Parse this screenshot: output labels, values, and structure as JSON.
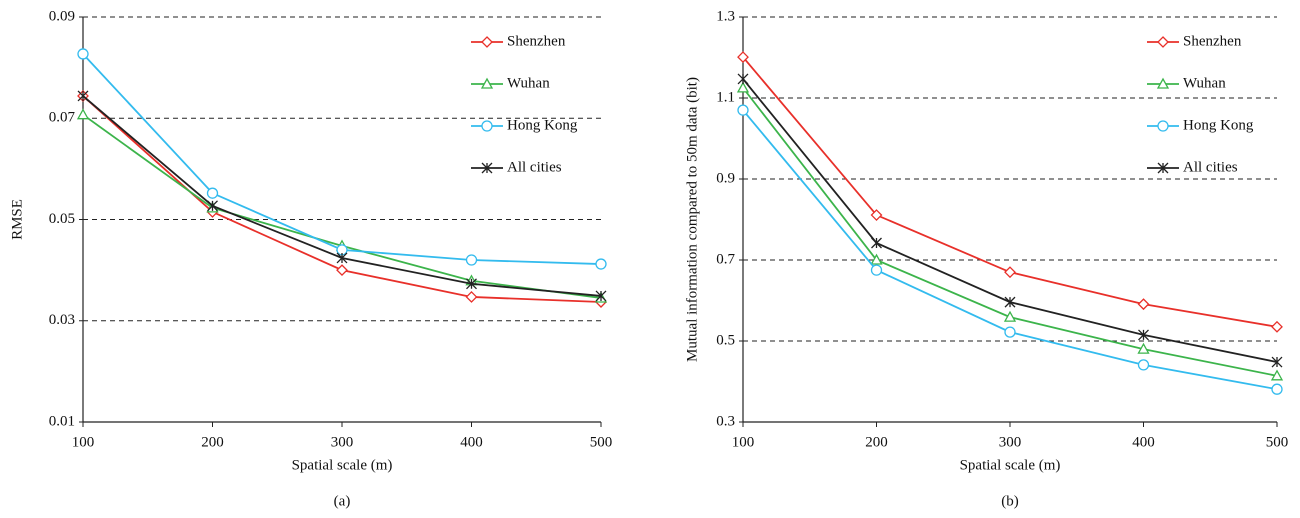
{
  "chart_data": [
    {
      "type": "line",
      "caption": "(a)",
      "x_label": "Spatial scale (m)",
      "y_label": "RMSE",
      "x": [
        100,
        200,
        300,
        400,
        500
      ],
      "xlim": [
        100,
        500
      ],
      "xticks": [
        100,
        200,
        300,
        400,
        500
      ],
      "ylim": [
        0.01,
        0.09
      ],
      "yticks": [
        0.01,
        0.03,
        0.05,
        0.07,
        0.09
      ],
      "grid": true,
      "legend": "upper right",
      "series": [
        {
          "name": "Shenzhen",
          "color": "#e8302a",
          "marker": "diamond",
          "values": [
            0.0744,
            0.0515,
            0.04,
            0.0347,
            0.0337
          ]
        },
        {
          "name": "Wuhan",
          "color": "#3cb44b",
          "marker": "triangle",
          "values": [
            0.0707,
            0.0523,
            0.0448,
            0.0379,
            0.0345
          ]
        },
        {
          "name": "Hong Kong",
          "color": "#33bbee",
          "marker": "circle",
          "values": [
            0.0827,
            0.0552,
            0.044,
            0.042,
            0.0412
          ]
        },
        {
          "name": "All cities",
          "color": "#222222",
          "marker": "asterisk",
          "values": [
            0.0744,
            0.0527,
            0.0424,
            0.0373,
            0.0349
          ]
        }
      ]
    },
    {
      "type": "line",
      "caption": "(b)",
      "x_label": "Spatial scale (m)",
      "y_label": "Mutual information compared to 50m data (bit)",
      "x": [
        100,
        200,
        300,
        400,
        500
      ],
      "xlim": [
        100,
        500
      ],
      "xticks": [
        100,
        200,
        300,
        400,
        500
      ],
      "ylim": [
        0.3,
        1.3
      ],
      "yticks": [
        0.3,
        0.5,
        0.7,
        0.9,
        1.1,
        1.3
      ],
      "grid": true,
      "legend": "upper right",
      "series": [
        {
          "name": "Shenzhen",
          "color": "#e8302a",
          "marker": "diamond",
          "values": [
            1.201,
            0.811,
            0.67,
            0.591,
            0.535
          ]
        },
        {
          "name": "Wuhan",
          "color": "#3cb44b",
          "marker": "triangle",
          "values": [
            1.125,
            0.7,
            0.559,
            0.48,
            0.414
          ]
        },
        {
          "name": "Hong Kong",
          "color": "#33bbee",
          "marker": "circle",
          "values": [
            1.07,
            0.675,
            0.522,
            0.441,
            0.381
          ]
        },
        {
          "name": "All cities",
          "color": "#222222",
          "marker": "asterisk",
          "values": [
            1.147,
            0.742,
            0.596,
            0.515,
            0.448
          ]
        }
      ]
    }
  ]
}
